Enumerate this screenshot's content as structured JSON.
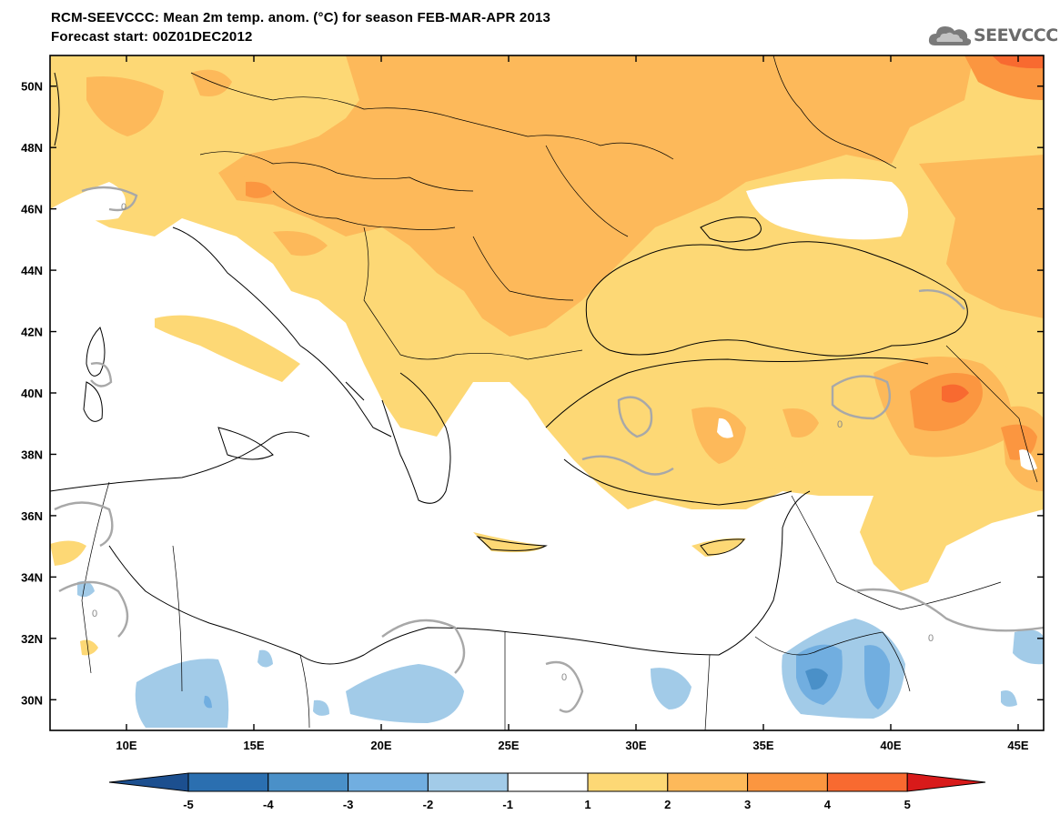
{
  "title": {
    "line1": "RCM-SEEVCCC: Mean 2m temp. anom. (°C) for season FEB-MAR-APR 2013",
    "line2": "Forecast start: 00Z01DEC2012"
  },
  "logo": {
    "text": "SEEVCCC",
    "icon": "cloud-icon"
  },
  "map": {
    "lon_range": [
      7,
      46
    ],
    "lat_range": [
      29,
      51
    ],
    "lon_ticks": [
      "10E",
      "15E",
      "20E",
      "25E",
      "30E",
      "35E",
      "40E",
      "45E"
    ],
    "lat_ticks": [
      "50N",
      "48N",
      "46N",
      "44N",
      "42N",
      "40N",
      "38N",
      "36N",
      "34N",
      "32N",
      "30N"
    ],
    "zero_contour_label": "0"
  },
  "colorbar": {
    "labels": [
      "-5",
      "-4",
      "-3",
      "-2",
      "-1",
      "1",
      "2",
      "3",
      "4",
      "5"
    ],
    "colors": [
      "#1c4f8f",
      "#2b6fb0",
      "#4a90c8",
      "#71aee0",
      "#a2cbe8",
      "#ffffff",
      "#fdd875",
      "#fdb95a",
      "#fb9640",
      "#f86a30",
      "#f33a22",
      "#d81a1a"
    ]
  }
}
